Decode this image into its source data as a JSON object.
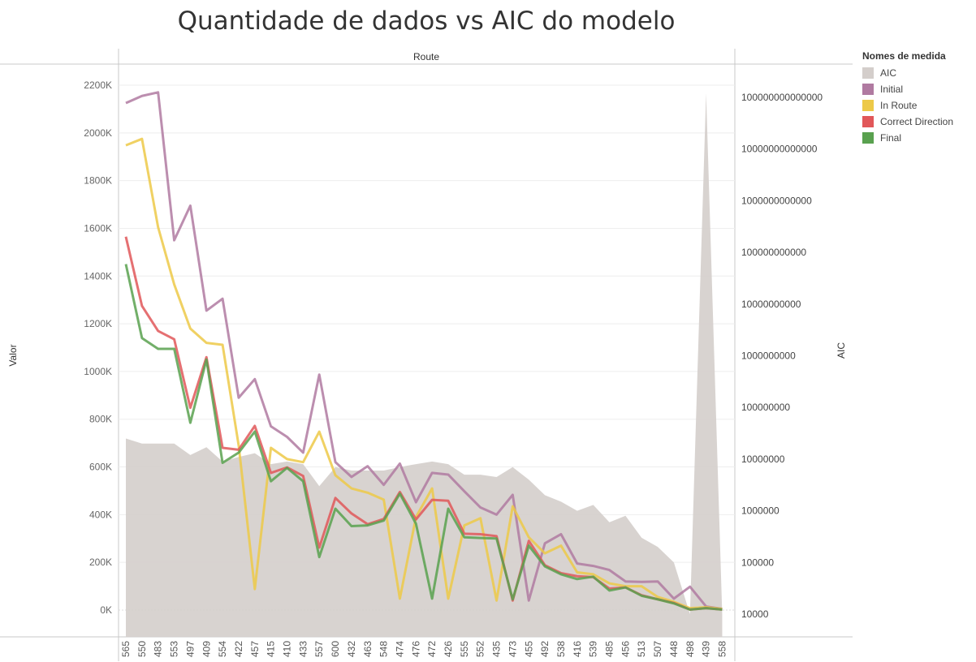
{
  "chart_data": {
    "type": "line",
    "title": "Quantidade de dados vs AIC do modelo",
    "header_label": "Route",
    "ylabel_left": "Valor",
    "ylabel_right": "AIC",
    "legend_title": "Nomes de medida",
    "legend_position": "right",
    "categories": [
      "565",
      "550",
      "483",
      "553",
      "497",
      "409",
      "554",
      "422",
      "457",
      "415",
      "410",
      "433",
      "557",
      "600",
      "432",
      "463",
      "548",
      "474",
      "476",
      "472",
      "426",
      "555",
      "552",
      "435",
      "473",
      "455",
      "492",
      "538",
      "416",
      "539",
      "485",
      "456",
      "513",
      "507",
      "448",
      "498",
      "439",
      "558"
    ],
    "y_left": {
      "ylim": [
        0,
        2200000
      ],
      "ticks": [
        0,
        200000,
        400000,
        600000,
        800000,
        1000000,
        1200000,
        1400000,
        1600000,
        1800000,
        2000000,
        2200000
      ],
      "tick_labels": [
        "0K",
        "200K",
        "400K",
        "600K",
        "800K",
        "1000K",
        "1200K",
        "1400K",
        "1600K",
        "1800K",
        "2000K",
        "2200K"
      ]
    },
    "y_right": {
      "scale": "log",
      "ylim": [
        10000,
        100000000000000.0
      ],
      "tick_labels": [
        "10000",
        "100000",
        "1000000",
        "10000000",
        "100000000",
        "1000000000",
        "10000000000",
        "100000000000",
        "1000000000000",
        "10000000000000",
        "100000000000000"
      ]
    },
    "area_series": {
      "name": "AIC",
      "color": "#d4cecb",
      "axis": "right",
      "values": [
        25000000,
        20000000,
        20000000,
        20000000,
        12000000,
        17000000,
        9000000,
        11000000,
        13000000,
        8000000,
        9000000,
        8000000,
        3000000,
        7000000,
        6000000,
        6000000,
        6000000,
        7000000,
        8000000,
        9000000,
        8000000,
        5000000,
        5000000,
        4500000,
        7000000,
        4000000,
        2000000,
        1500000,
        1000000,
        1300000,
        600000,
        800000,
        300000,
        200000,
        100000,
        10000,
        120000000000000,
        10000
      ]
    },
    "series": [
      {
        "name": "Initial",
        "color": "#b07aa1",
        "values": [
          2125000,
          2155000,
          2170000,
          1550000,
          1695000,
          1255000,
          1305000,
          890000,
          968000,
          770000,
          726000,
          660000,
          987000,
          620000,
          558000,
          603000,
          525000,
          614000,
          452000,
          575000,
          568000,
          498000,
          430000,
          400000,
          483000,
          40000,
          280000,
          318000,
          195000,
          185000,
          168000,
          120000,
          118000,
          120000,
          48000,
          98000,
          15000,
          5000
        ]
      },
      {
        "name": "In Route",
        "color": "#edc948",
        "values": [
          1948000,
          1975000,
          1605000,
          1365000,
          1180000,
          1120000,
          1112000,
          690000,
          88000,
          680000,
          633000,
          620000,
          748000,
          565000,
          510000,
          492000,
          463000,
          48000,
          390000,
          510000,
          48000,
          355000,
          385000,
          40000,
          435000,
          305000,
          238000,
          270000,
          158000,
          150000,
          112000,
          100000,
          100000,
          55000,
          35000,
          8000,
          12000,
          5000
        ]
      },
      {
        "name": "Correct Direction",
        "color": "#e15759",
        "values": [
          1565000,
          1275000,
          1170000,
          1135000,
          848000,
          1060000,
          680000,
          672000,
          772000,
          575000,
          598000,
          562000,
          262000,
          470000,
          405000,
          360000,
          382000,
          495000,
          380000,
          462000,
          458000,
          320000,
          318000,
          310000,
          40000,
          290000,
          188000,
          155000,
          142000,
          138000,
          90000,
          95000,
          62000,
          45000,
          30000,
          2000,
          8000,
          2000
        ]
      },
      {
        "name": "Final",
        "color": "#59a14f",
        "values": [
          1450000,
          1140000,
          1095000,
          1095000,
          785000,
          1050000,
          617000,
          660000,
          748000,
          540000,
          596000,
          540000,
          222000,
          425000,
          352000,
          355000,
          375000,
          488000,
          362000,
          48000,
          425000,
          305000,
          302000,
          300000,
          45000,
          270000,
          183000,
          150000,
          130000,
          140000,
          82000,
          95000,
          60000,
          45000,
          28000,
          2000,
          8000,
          2000
        ]
      }
    ],
    "legend": [
      {
        "name": "AIC",
        "color": "#d4cecb"
      },
      {
        "name": "Initial",
        "color": "#b07aa1"
      },
      {
        "name": "In Route",
        "color": "#edc948"
      },
      {
        "name": "Correct Direction",
        "color": "#e15759"
      },
      {
        "name": "Final",
        "color": "#59a14f"
      }
    ]
  }
}
